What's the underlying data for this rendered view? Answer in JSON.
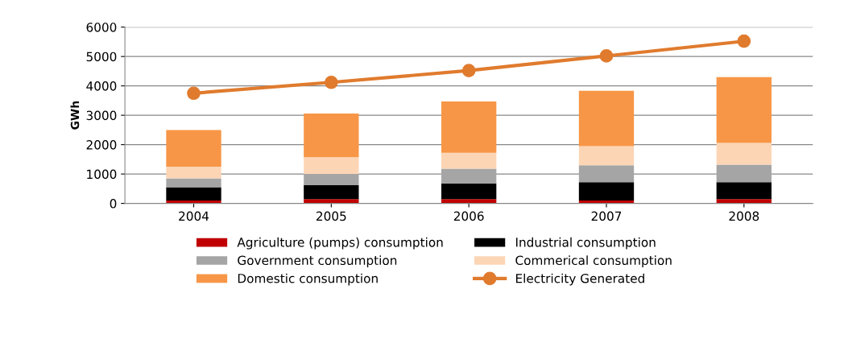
{
  "chart_data": {
    "type": "bar",
    "stacked": true,
    "ylabel": "GWh",
    "categories": [
      "2004",
      "2005",
      "2006",
      "2007",
      "2008"
    ],
    "series": [
      {
        "name": "Agriculture (pumps) consumption",
        "color": "#c00000",
        "values": [
          100,
          150,
          150,
          100,
          150
        ]
      },
      {
        "name": "Industrial consumption",
        "color": "#000000",
        "values": [
          450,
          470,
          530,
          620,
          570
        ]
      },
      {
        "name": "Government consumption",
        "color": "#a5a5a5",
        "values": [
          300,
          380,
          500,
          580,
          600
        ]
      },
      {
        "name": "Commerical consumption",
        "color": "#fcd5b5",
        "values": [
          400,
          570,
          540,
          650,
          740
        ]
      },
      {
        "name": "Domestic consumption",
        "color": "#f79646",
        "values": [
          1250,
          1490,
          1750,
          1880,
          2240
        ]
      },
      {
        "name": "Electricity Generated",
        "type": "line",
        "marker": "circle",
        "color": "#e07b2e",
        "values": [
          3750,
          4120,
          4520,
          5020,
          5520
        ]
      }
    ],
    "ylim": [
      0,
      6000
    ],
    "yticks": [
      0,
      1000,
      2000,
      3000,
      4000,
      5000,
      6000
    ],
    "grid": "y",
    "legend": "bottom"
  }
}
